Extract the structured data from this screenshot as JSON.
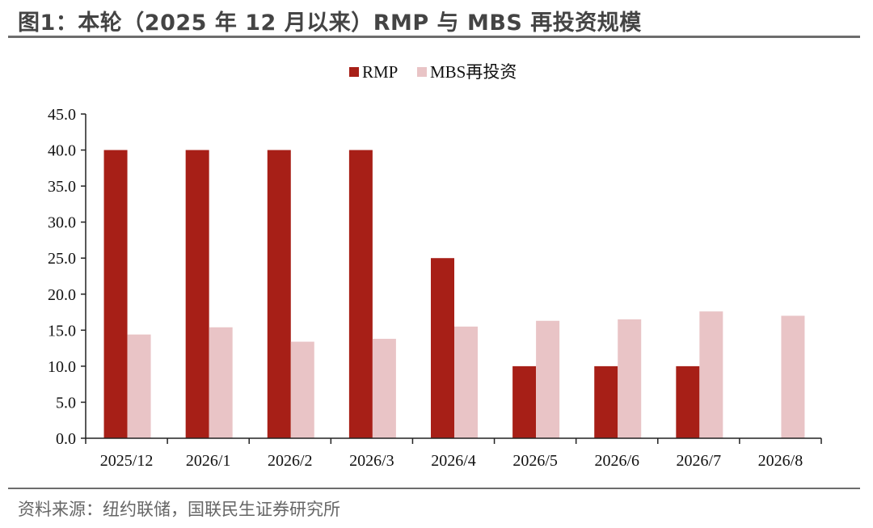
{
  "header": {
    "title": "图1：本轮（2025 年 12 月以来）RMP 与 MBS 再投资规模"
  },
  "footer": {
    "source": "资料来源：纽约联储，国联民生证券研究所"
  },
  "colors": {
    "rmp": "#a71f17",
    "mbs": "#e9c4c6",
    "axis": "#222222",
    "rule": "#6d6d6d"
  },
  "chart_data": {
    "type": "bar",
    "categories": [
      "2025/12",
      "2026/1",
      "2026/2",
      "2026/3",
      "2026/4",
      "2026/5",
      "2026/6",
      "2026/7",
      "2026/8"
    ],
    "series": [
      {
        "name": "RMP",
        "values": [
          40,
          40,
          40,
          40,
          25,
          10,
          10,
          10,
          null
        ]
      },
      {
        "name": "MBS再投资",
        "values": [
          14.4,
          15.4,
          13.4,
          13.8,
          15.5,
          16.3,
          16.5,
          17.6,
          17.0
        ]
      }
    ],
    "ylim": [
      0,
      45
    ],
    "yticks": [
      "0.0",
      "5.0",
      "10.0",
      "15.0",
      "20.0",
      "25.0",
      "30.0",
      "35.0",
      "40.0",
      "45.0"
    ],
    "legend_position": "top-center",
    "grid": false
  }
}
